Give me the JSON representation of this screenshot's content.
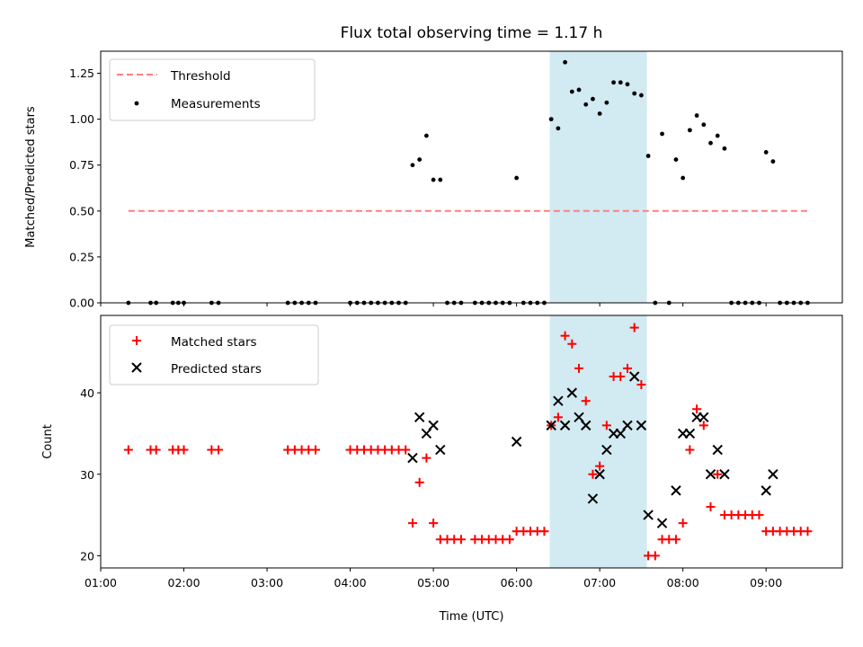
{
  "title": "Flux total observing time = 1.17 h",
  "colors": {
    "threshold": "#ff7f7f",
    "measurements": "#000000",
    "matched": "#ff0000",
    "predicted": "#000000",
    "span": "#add8e6"
  },
  "chart_data": [
    {
      "type": "scatter",
      "ylabel": "Matched/Predicted stars",
      "ylim": [
        0,
        1.37
      ],
      "yticks": [
        "0.00",
        "0.25",
        "0.50",
        "0.75",
        "1.00",
        "1.25"
      ],
      "ytick_values": [
        0,
        0.25,
        0.5,
        0.75,
        1.0,
        1.25
      ],
      "xlim": [
        "01:00",
        "09:55"
      ],
      "highlight_span": [
        "06:24",
        "07:34"
      ],
      "legend_position": "upper-left",
      "legend": [
        "Threshold",
        "Measurements"
      ],
      "threshold": {
        "name": "Threshold",
        "value": 0.5,
        "x_range": [
          "01:20",
          "09:30"
        ]
      },
      "series": [
        {
          "name": "Measurements",
          "points": [
            [
              "01:20",
              0
            ],
            [
              "01:36",
              0
            ],
            [
              "01:40",
              0
            ],
            [
              "01:52",
              0
            ],
            [
              "01:56",
              0
            ],
            [
              "02:00",
              0
            ],
            [
              "02:20",
              0
            ],
            [
              "02:25",
              0
            ],
            [
              "03:15",
              0
            ],
            [
              "03:20",
              0
            ],
            [
              "03:25",
              0
            ],
            [
              "03:30",
              0
            ],
            [
              "03:35",
              0
            ],
            [
              "04:00",
              0
            ],
            [
              "04:05",
              0
            ],
            [
              "04:10",
              0
            ],
            [
              "04:15",
              0
            ],
            [
              "04:20",
              0
            ],
            [
              "04:25",
              0
            ],
            [
              "04:30",
              0
            ],
            [
              "04:35",
              0
            ],
            [
              "04:40",
              0
            ],
            [
              "04:45",
              0.75
            ],
            [
              "04:50",
              0.78
            ],
            [
              "04:55",
              0.91
            ],
            [
              "05:00",
              0.67
            ],
            [
              "05:05",
              0.67
            ],
            [
              "05:10",
              0
            ],
            [
              "05:15",
              0
            ],
            [
              "05:20",
              0
            ],
            [
              "05:30",
              0
            ],
            [
              "05:35",
              0
            ],
            [
              "05:40",
              0
            ],
            [
              "05:45",
              0
            ],
            [
              "05:50",
              0
            ],
            [
              "05:55",
              0
            ],
            [
              "06:00",
              0.68
            ],
            [
              "06:05",
              0
            ],
            [
              "06:10",
              0
            ],
            [
              "06:15",
              0
            ],
            [
              "06:20",
              0
            ],
            [
              "06:25",
              1.0
            ],
            [
              "06:30",
              0.95
            ],
            [
              "06:35",
              1.31
            ],
            [
              "06:40",
              1.15
            ],
            [
              "06:45",
              1.16
            ],
            [
              "06:50",
              1.08
            ],
            [
              "06:55",
              1.11
            ],
            [
              "07:00",
              1.03
            ],
            [
              "07:05",
              1.09
            ],
            [
              "07:10",
              1.2
            ],
            [
              "07:15",
              1.2
            ],
            [
              "07:20",
              1.19
            ],
            [
              "07:25",
              1.14
            ],
            [
              "07:30",
              1.13
            ],
            [
              "07:35",
              0.8
            ],
            [
              "07:40",
              0
            ],
            [
              "07:45",
              0.92
            ],
            [
              "07:50",
              0
            ],
            [
              "07:55",
              0.78
            ],
            [
              "08:00",
              0.68
            ],
            [
              "08:05",
              0.94
            ],
            [
              "08:10",
              1.02
            ],
            [
              "08:15",
              0.97
            ],
            [
              "08:20",
              0.87
            ],
            [
              "08:25",
              0.91
            ],
            [
              "08:30",
              0.84
            ],
            [
              "08:35",
              0
            ],
            [
              "08:40",
              0
            ],
            [
              "08:45",
              0
            ],
            [
              "08:50",
              0
            ],
            [
              "08:55",
              0
            ],
            [
              "09:00",
              0.82
            ],
            [
              "09:05",
              0.77
            ],
            [
              "09:10",
              0
            ],
            [
              "09:15",
              0
            ],
            [
              "09:20",
              0
            ],
            [
              "09:25",
              0
            ],
            [
              "09:30",
              0
            ]
          ]
        }
      ]
    },
    {
      "type": "scatter",
      "ylabel": "Count",
      "xlabel": "Time (UTC)",
      "ylim": [
        18.5,
        49.5
      ],
      "yticks": [
        "20",
        "30",
        "40"
      ],
      "ytick_values": [
        20,
        30,
        40
      ],
      "xlim": [
        "01:00",
        "09:55"
      ],
      "xticks": [
        "01:00",
        "02:00",
        "03:00",
        "04:00",
        "05:00",
        "06:00",
        "07:00",
        "08:00",
        "09:00"
      ],
      "highlight_span": [
        "06:24",
        "07:34"
      ],
      "legend_position": "upper-left",
      "legend": [
        "Matched stars",
        "Predicted stars"
      ],
      "series": [
        {
          "name": "Matched stars",
          "marker": "plus",
          "points": [
            [
              "01:20",
              33
            ],
            [
              "01:36",
              33
            ],
            [
              "01:40",
              33
            ],
            [
              "01:52",
              33
            ],
            [
              "01:56",
              33
            ],
            [
              "02:00",
              33
            ],
            [
              "02:20",
              33
            ],
            [
              "02:25",
              33
            ],
            [
              "03:15",
              33
            ],
            [
              "03:20",
              33
            ],
            [
              "03:25",
              33
            ],
            [
              "03:30",
              33
            ],
            [
              "03:35",
              33
            ],
            [
              "04:00",
              33
            ],
            [
              "04:05",
              33
            ],
            [
              "04:10",
              33
            ],
            [
              "04:15",
              33
            ],
            [
              "04:20",
              33
            ],
            [
              "04:25",
              33
            ],
            [
              "04:30",
              33
            ],
            [
              "04:35",
              33
            ],
            [
              "04:40",
              33
            ],
            [
              "04:45",
              24
            ],
            [
              "04:50",
              29
            ],
            [
              "04:55",
              32
            ],
            [
              "05:00",
              24
            ],
            [
              "05:05",
              22
            ],
            [
              "05:10",
              22
            ],
            [
              "05:15",
              22
            ],
            [
              "05:20",
              22
            ],
            [
              "05:30",
              22
            ],
            [
              "05:35",
              22
            ],
            [
              "05:40",
              22
            ],
            [
              "05:45",
              22
            ],
            [
              "05:50",
              22
            ],
            [
              "05:55",
              22
            ],
            [
              "06:00",
              23
            ],
            [
              "06:05",
              23
            ],
            [
              "06:10",
              23
            ],
            [
              "06:15",
              23
            ],
            [
              "06:20",
              23
            ],
            [
              "06:25",
              36
            ],
            [
              "06:30",
              37
            ],
            [
              "06:35",
              47
            ],
            [
              "06:40",
              46
            ],
            [
              "06:45",
              43
            ],
            [
              "06:50",
              39
            ],
            [
              "06:55",
              30
            ],
            [
              "07:00",
              31
            ],
            [
              "07:05",
              36
            ],
            [
              "07:10",
              42
            ],
            [
              "07:15",
              42
            ],
            [
              "07:20",
              43
            ],
            [
              "07:25",
              48
            ],
            [
              "07:30",
              41
            ],
            [
              "07:35",
              20
            ],
            [
              "07:40",
              20
            ],
            [
              "07:45",
              22
            ],
            [
              "07:50",
              22
            ],
            [
              "07:55",
              22
            ],
            [
              "08:00",
              24
            ],
            [
              "08:05",
              33
            ],
            [
              "08:10",
              38
            ],
            [
              "08:15",
              36
            ],
            [
              "08:20",
              26
            ],
            [
              "08:25",
              30
            ],
            [
              "08:30",
              25
            ],
            [
              "08:35",
              25
            ],
            [
              "08:40",
              25
            ],
            [
              "08:45",
              25
            ],
            [
              "08:50",
              25
            ],
            [
              "08:55",
              25
            ],
            [
              "09:00",
              23
            ],
            [
              "09:05",
              23
            ],
            [
              "09:10",
              23
            ],
            [
              "09:15",
              23
            ],
            [
              "09:20",
              23
            ],
            [
              "09:25",
              23
            ],
            [
              "09:30",
              23
            ]
          ]
        },
        {
          "name": "Predicted stars",
          "marker": "x",
          "points": [
            [
              "04:45",
              32
            ],
            [
              "04:50",
              37
            ],
            [
              "04:55",
              35
            ],
            [
              "05:00",
              36
            ],
            [
              "05:05",
              33
            ],
            [
              "06:00",
              34
            ],
            [
              "06:25",
              36
            ],
            [
              "06:30",
              39
            ],
            [
              "06:35",
              36
            ],
            [
              "06:40",
              40
            ],
            [
              "06:45",
              37
            ],
            [
              "06:50",
              36
            ],
            [
              "06:55",
              27
            ],
            [
              "07:00",
              30
            ],
            [
              "07:05",
              33
            ],
            [
              "07:10",
              35
            ],
            [
              "07:15",
              35
            ],
            [
              "07:20",
              36
            ],
            [
              "07:25",
              42
            ],
            [
              "07:30",
              36
            ],
            [
              "07:35",
              25
            ],
            [
              "07:45",
              24
            ],
            [
              "07:55",
              28
            ],
            [
              "08:00",
              35
            ],
            [
              "08:05",
              35
            ],
            [
              "08:10",
              37
            ],
            [
              "08:15",
              37
            ],
            [
              "08:20",
              30
            ],
            [
              "08:25",
              33
            ],
            [
              "08:30",
              30
            ],
            [
              "09:00",
              28
            ],
            [
              "09:05",
              30
            ]
          ]
        }
      ]
    }
  ]
}
